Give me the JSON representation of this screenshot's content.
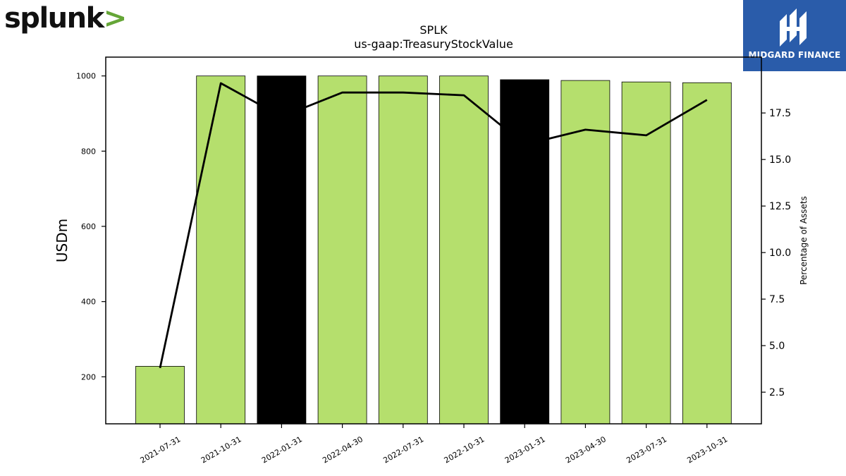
{
  "brand_left": {
    "name": "splunk",
    "chevron": ">"
  },
  "brand_right": {
    "name": "MIDGARD FINANCE"
  },
  "colors": {
    "bar_default": "#b5df6d",
    "bar_highlight": "#000000",
    "line": "#000000",
    "brand_chevron": "#65a637",
    "brand_right_bg": "#2a5caa"
  },
  "chart_data": {
    "type": "bar",
    "title": "SPLK",
    "subtitle": "us-gaap:TreasuryStockValue",
    "ylabel": "USDm",
    "y2label": "Percentage of Assets",
    "categories": [
      "2021-07-31",
      "2021-10-31",
      "2022-01-31",
      "2022-04-30",
      "2022-07-31",
      "2022-10-31",
      "2023-01-31",
      "2023-04-30",
      "2023-07-31",
      "2023-10-31"
    ],
    "ylim": [
      75,
      1050
    ],
    "y2lim": [
      0.8,
      20.5
    ],
    "yticks": [
      200,
      400,
      600,
      800,
      1000
    ],
    "y2ticks": [
      "2.5",
      "5.0",
      "7.5",
      "10.0",
      "12.5",
      "15.0",
      "17.5"
    ],
    "series": [
      {
        "kind": "bar",
        "values": [
          228,
          1000,
          1000,
          1000,
          1000,
          1000,
          990,
          988,
          984,
          982
        ],
        "highlight": [
          false,
          false,
          true,
          false,
          false,
          false,
          true,
          false,
          false,
          false
        ]
      },
      {
        "kind": "line",
        "axis": "right",
        "values": [
          3.8,
          19.1,
          17.3,
          18.6,
          18.6,
          18.45,
          15.8,
          16.6,
          16.3,
          18.2
        ]
      }
    ]
  }
}
